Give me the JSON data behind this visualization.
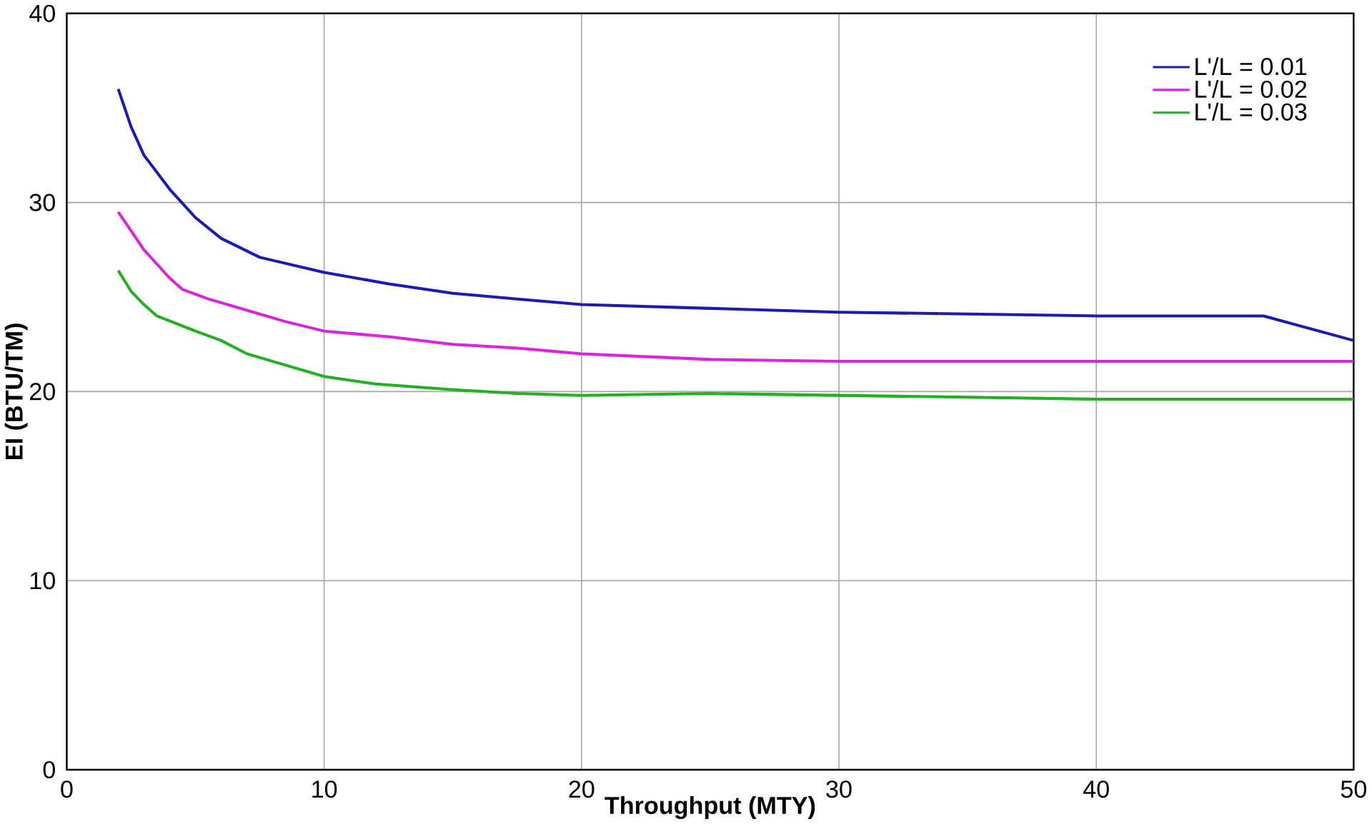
{
  "chart_data": {
    "type": "line",
    "xlabel": "Throughput (MTY)",
    "ylabel": "EI (BTU/TM)",
    "xlim": [
      0,
      50
    ],
    "ylim": [
      0,
      40
    ],
    "xticks": [
      0,
      10,
      20,
      30,
      40,
      50
    ],
    "yticks": [
      0,
      10,
      20,
      30,
      40
    ],
    "grid": true,
    "legend": "top right",
    "line_style": "solid",
    "series": [
      {
        "name": "L'/L = 0.01",
        "color": "#1a1ab4",
        "x": [
          2,
          2.5,
          3,
          4,
          5,
          6,
          7.5,
          10,
          12.5,
          15,
          17.5,
          20,
          25,
          30,
          35,
          40,
          46.5,
          50
        ],
        "values": [
          36,
          34,
          32.5,
          30.7,
          29.2,
          28.1,
          27.1,
          26.3,
          25.7,
          25.2,
          24.9,
          24.6,
          24.4,
          24.2,
          24.1,
          24.0,
          24.0,
          22.7
        ]
      },
      {
        "name": "L'/L = 0.02",
        "color": "#e020e0",
        "x": [
          2,
          3,
          4,
          4.5,
          5.5,
          7,
          8.5,
          10,
          12.5,
          15,
          17.5,
          20,
          25,
          30,
          40,
          50
        ],
        "values": [
          29.5,
          27.5,
          26,
          25.4,
          24.9,
          24.3,
          23.7,
          23.2,
          22.9,
          22.5,
          22.3,
          22.0,
          21.7,
          21.6,
          21.6,
          21.6
        ]
      },
      {
        "name": "L'/L = 0.03",
        "color": "#20b020",
        "x": [
          2,
          2.5,
          3,
          3.5,
          5,
          6,
          7,
          8.5,
          10,
          12,
          15,
          17.5,
          20,
          25,
          30,
          40,
          50
        ],
        "values": [
          26.4,
          25.3,
          24.6,
          24,
          23.2,
          22.7,
          22.0,
          21.4,
          20.8,
          20.4,
          20.1,
          19.9,
          19.8,
          19.9,
          19.8,
          19.6,
          19.6
        ]
      }
    ]
  }
}
